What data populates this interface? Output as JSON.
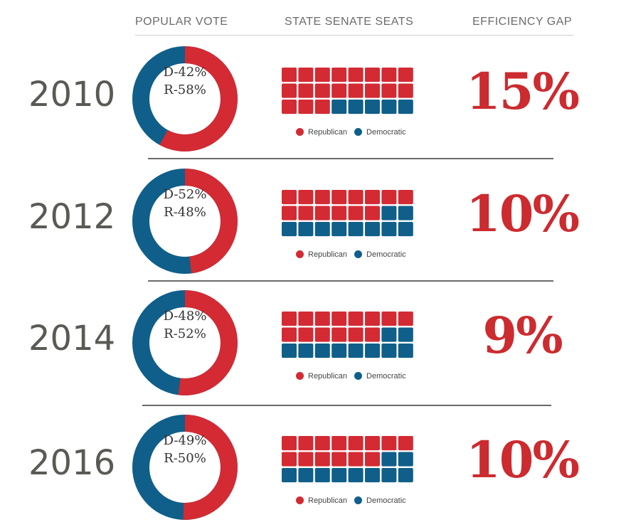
{
  "headers": {
    "popular_vote": "POPULAR VOTE",
    "senate_seats": "STATE SENATE SEATS",
    "efficiency_gap": "EFFICIENCY GAP"
  },
  "legend": {
    "republican": "Republican",
    "democratic": "Democratic"
  },
  "colors": {
    "republican": "#d42a33",
    "democratic": "#0f5f8a"
  },
  "chart_data": {
    "type": "table",
    "rows": [
      {
        "year": "2010",
        "dem_label": "D-42%",
        "rep_label": "R-58%",
        "dem_pct": 42,
        "rep_pct": 58,
        "rep_seats": 19,
        "dem_seats": 5,
        "gap_label": "15%",
        "gap": 15
      },
      {
        "year": "2012",
        "dem_label": "D-52%",
        "rep_label": "R-48%",
        "dem_pct": 52,
        "rep_pct": 48,
        "rep_seats": 14,
        "dem_seats": 10,
        "gap_label": "10%",
        "gap": 10
      },
      {
        "year": "2014",
        "dem_label": "D-48%",
        "rep_label": "R-52%",
        "dem_pct": 48,
        "rep_pct": 52,
        "rep_seats": 14,
        "dem_seats": 10,
        "gap_label": "9%",
        "gap": 9
      },
      {
        "year": "2016",
        "dem_label": "D-49%",
        "rep_label": "R-50%",
        "dem_pct": 49,
        "rep_pct": 50,
        "rep_seats": 14,
        "dem_seats": 10,
        "gap_label": "10%",
        "gap": 10
      }
    ]
  }
}
